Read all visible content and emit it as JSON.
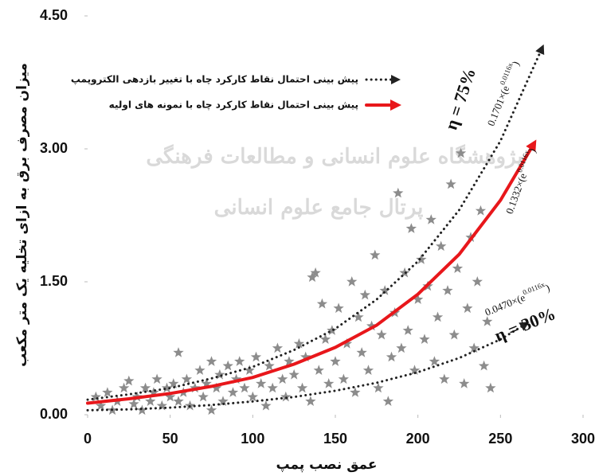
{
  "chart_data": {
    "type": "scatter",
    "x_label": "عمق نصب پمپ",
    "y_label": "میزان مصرف برق به ازای تخلیه یک متر مکعب",
    "xlim": [
      0,
      300
    ],
    "xticks": [
      0,
      50,
      100,
      150,
      200,
      250,
      300
    ],
    "ylim": [
      0,
      4.5
    ],
    "yticks": [
      {
        "value": 0,
        "label": "0.00"
      },
      {
        "value": 1.5,
        "label": "1.50"
      },
      {
        "value": 3,
        "label": "3.00"
      },
      {
        "value": 4.5,
        "label": "4.50"
      }
    ],
    "grid": false,
    "watermark": [
      "پژوهشگاه علوم انسانی و مطالعات فرهنگی",
      "پرتال جامع علوم انسانی"
    ],
    "points": {
      "color": "#8c8c8c",
      "x": [
        5,
        8,
        12,
        15,
        18,
        22,
        25,
        28,
        30,
        33,
        35,
        38,
        40,
        42,
        45,
        48,
        50,
        52,
        55,
        55,
        58,
        60,
        62,
        65,
        68,
        70,
        72,
        75,
        75,
        78,
        80,
        82,
        85,
        88,
        90,
        92,
        95,
        98,
        100,
        102,
        105,
        108,
        110,
        112,
        115,
        118,
        120,
        122,
        125,
        128,
        130,
        132,
        135,
        136,
        138,
        140,
        142,
        144,
        146,
        148,
        150,
        152,
        155,
        157,
        160,
        162,
        164,
        166,
        168,
        170,
        172,
        174,
        176,
        178,
        180,
        182,
        184,
        186,
        188,
        190,
        192,
        194,
        196,
        198,
        200,
        202,
        204,
        206,
        208,
        210,
        212,
        214,
        216,
        218,
        220,
        222,
        224,
        226,
        228,
        230,
        232,
        234,
        236,
        238,
        240,
        242,
        244
      ],
      "values": [
        0.2,
        0.1,
        0.25,
        0.05,
        0.15,
        0.3,
        0.38,
        0.12,
        0.2,
        0.05,
        0.3,
        0.15,
        0.25,
        0.4,
        0.1,
        0.3,
        0.2,
        0.35,
        0.15,
        0.7,
        0.25,
        0.4,
        0.1,
        0.3,
        0.5,
        0.2,
        0.35,
        0.05,
        0.6,
        0.3,
        0.45,
        0.15,
        0.55,
        0.25,
        0.4,
        0.6,
        0.3,
        0.5,
        0.2,
        0.65,
        0.35,
        0.1,
        0.55,
        0.3,
        0.75,
        0.4,
        0.2,
        0.6,
        0.45,
        0.8,
        0.3,
        0.65,
        0.15,
        1.55,
        1.6,
        0.5,
        1.25,
        0.85,
        0.35,
        0.95,
        0.6,
        1.2,
        0.4,
        0.8,
        1.5,
        0.25,
        1.1,
        0.7,
        1.35,
        0.5,
        1.0,
        1.8,
        0.3,
        0.9,
        1.4,
        0.15,
        0.65,
        1.15,
        2.5,
        0.75,
        1.6,
        0.95,
        2.1,
        0.5,
        1.3,
        1.75,
        0.85,
        1.45,
        2.2,
        0.6,
        1.1,
        1.9,
        0.4,
        1.4,
        2.6,
        0.9,
        1.65,
        2.95,
        0.35,
        1.2,
        2.0,
        0.75,
        1.5,
        2.3,
        0.55,
        1.05,
        0.3
      ]
    },
    "curves": [
      {
        "color": "#222222",
        "dashed": true,
        "x": [
          0,
          25,
          50,
          75,
          100,
          125,
          150,
          175,
          200,
          225,
          250,
          275
        ],
        "values": [
          0.17,
          0.23,
          0.3,
          0.41,
          0.54,
          0.73,
          0.97,
          1.3,
          1.73,
          2.31,
          3.09,
          4.13
        ]
      },
      {
        "color": "#e8171b",
        "dashed": false,
        "x": [
          0,
          25,
          50,
          75,
          100,
          125,
          150,
          175,
          200,
          225,
          250,
          270
        ],
        "values": [
          0.13,
          0.18,
          0.24,
          0.32,
          0.42,
          0.57,
          0.76,
          1.01,
          1.36,
          1.81,
          2.42,
          3.05
        ]
      },
      {
        "color": "#222222",
        "dashed": true,
        "x": [
          0,
          25,
          50,
          75,
          100,
          125,
          150,
          175,
          200,
          225,
          250,
          265
        ],
        "values": [
          0.05,
          0.06,
          0.08,
          0.11,
          0.15,
          0.2,
          0.27,
          0.36,
          0.48,
          0.64,
          0.85,
          1.02
        ]
      }
    ],
    "legend": [
      {
        "label": "پیش بینی احتمال نقاط کارکرد چاه با تغییر بازدهی الکتروپمپ",
        "color": "#222222",
        "dashed": true
      },
      {
        "label": "پیش بینی احتمال نقاط کارکرد چاه با نمونه های اولیه",
        "color": "#e8171b",
        "dashed": false
      }
    ],
    "annotations": [
      {
        "text": "η = 75%"
      },
      {
        "text": "η = 30%"
      },
      {
        "prefix": "0.1701×(e",
        "exponent": "0.0116x",
        "suffix": ")"
      },
      {
        "prefix": "0.1332×(e",
        "exponent": "0.0116x",
        "suffix": ")"
      },
      {
        "prefix": "0.0470×(e",
        "exponent": "0.0116x",
        "suffix": ")"
      }
    ]
  }
}
